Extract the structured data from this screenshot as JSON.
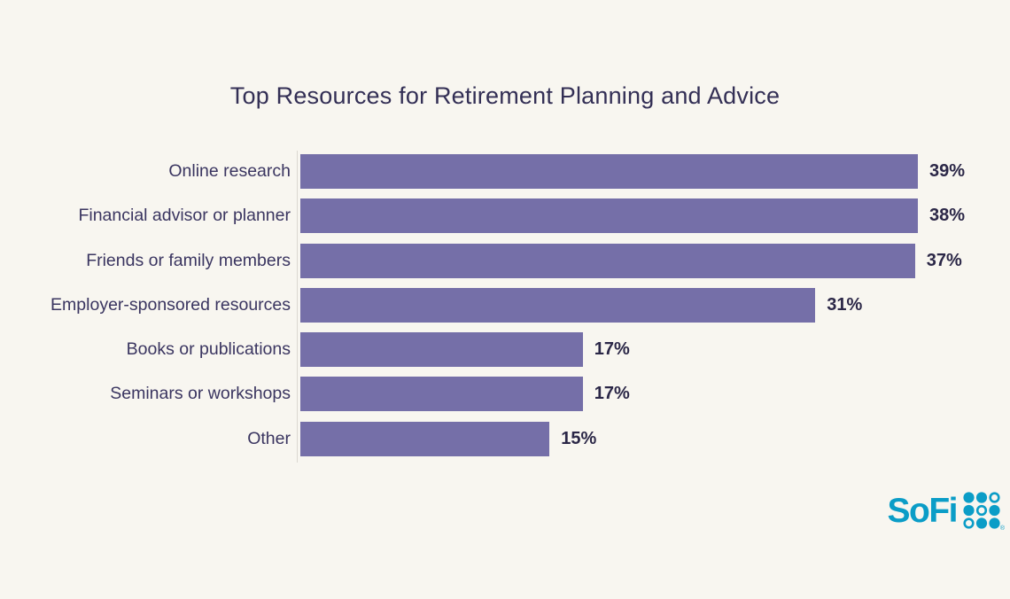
{
  "page": {
    "background_color": "#F8F6F0"
  },
  "chart_data": {
    "type": "bar",
    "orientation": "horizontal",
    "title": "Top Resources for Retirement Planning and Advice",
    "categories": [
      "Online research",
      "Financial advisor or planner",
      "Friends or family members",
      "Employer-sponsored resources",
      "Books or publications",
      "Seminars or workshops",
      "Other"
    ],
    "values": [
      39,
      38,
      37,
      31,
      17,
      17,
      15
    ],
    "value_suffix": "%",
    "xlim": [
      0,
      40
    ],
    "grid": false,
    "legend": false,
    "bar_color": "#756FA8",
    "title_color": "#332F55",
    "label_color": "#3A3560",
    "value_color": "#2B2747",
    "axis_line_color": "#DBD8D0"
  },
  "branding": {
    "logo_text": "SoFi",
    "logo_color": "#0B9DC7",
    "registered_mark": "®",
    "dot_grid": {
      "rows": 3,
      "cols": 3,
      "hollow_positions": [
        [
          0,
          2
        ],
        [
          1,
          1
        ],
        [
          2,
          0
        ]
      ]
    }
  }
}
